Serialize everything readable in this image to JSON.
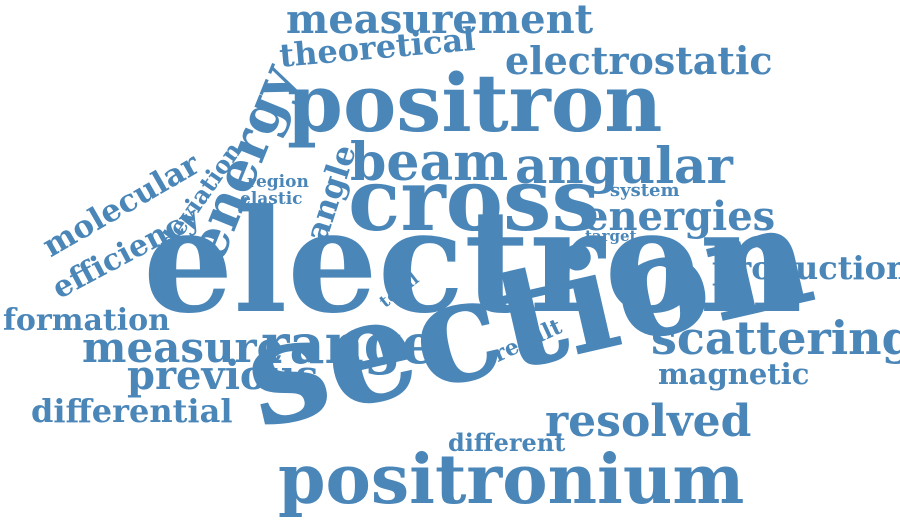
{
  "color": "#4a86b8",
  "words": {
    "measurement": "measurement",
    "theoretical": "theoretical",
    "electrostatic": "electrostatic",
    "positron": "positron",
    "energy": "energy",
    "beam": "beam",
    "angular": "angular",
    "molecular": "molecular",
    "deviation": "deviation",
    "region": "region",
    "elastic": "elastic",
    "angle": "angle",
    "cross": "cross",
    "system": "system",
    "energies": "energies",
    "efficiency": "efficiency",
    "target": "target",
    "electron": "electron",
    "production": "production",
    "total": "total",
    "formation": "formation",
    "result": "result",
    "scattering": "scattering",
    "measure": "measure",
    "range": "range",
    "previous": "previous",
    "magnetic": "magnetic",
    "section": "section",
    "differential": "differential",
    "resolved": "resolved",
    "different": "different",
    "positronium": "positronium"
  }
}
